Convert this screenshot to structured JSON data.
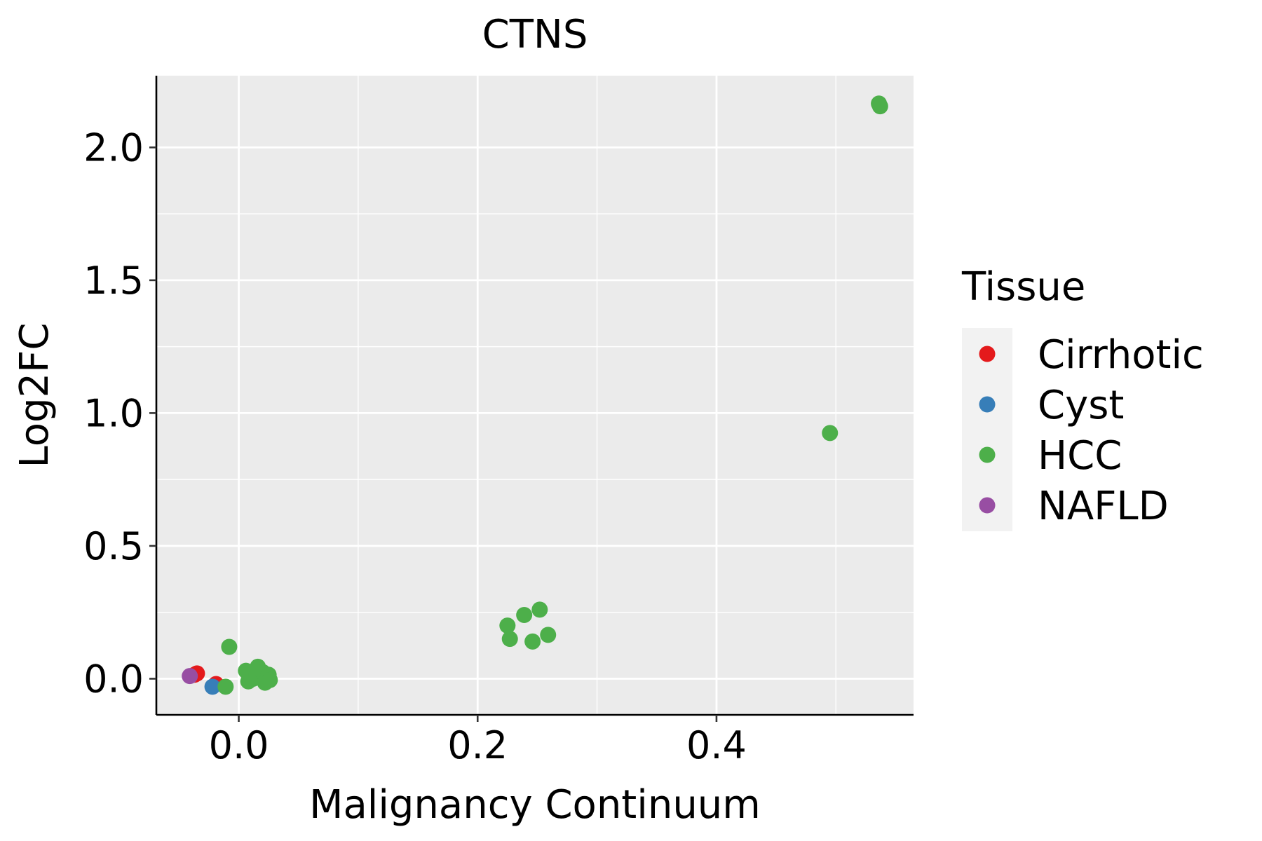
{
  "chart_data": {
    "type": "scatter",
    "title": "CTNS",
    "xlabel": "Malignancy Continuum",
    "ylabel": "Log2FC",
    "xlim": [
      -0.069,
      0.565
    ],
    "ylim": [
      -0.136,
      2.27
    ],
    "x_ticks": [
      0.0,
      0.2,
      0.4
    ],
    "x_tick_labels": [
      "0.0",
      "0.2",
      "0.4"
    ],
    "x_minor": [
      -0.1,
      0.1,
      0.3,
      0.5
    ],
    "y_ticks": [
      0.0,
      0.5,
      1.0,
      1.5,
      2.0
    ],
    "y_tick_labels": [
      "0.0",
      "0.5",
      "1.0",
      "1.5",
      "2.0"
    ],
    "y_minor": [
      0.25,
      0.75,
      1.25,
      1.75
    ],
    "grid": true,
    "legend": {
      "title": "Tissue",
      "position": "right",
      "entries": [
        {
          "label": "Cirrhotic",
          "color": "#E41A1C"
        },
        {
          "label": "Cyst",
          "color": "#377EB8"
        },
        {
          "label": "HCC",
          "color": "#4DAF4A"
        },
        {
          "label": "NAFLD",
          "color": "#984EA3"
        }
      ]
    },
    "series": [
      {
        "name": "Cirrhotic",
        "color": "#E41A1C",
        "points": [
          {
            "x": -0.035,
            "y": 0.02
          },
          {
            "x": -0.037,
            "y": 0.015
          },
          {
            "x": -0.019,
            "y": -0.02
          }
        ]
      },
      {
        "name": "Cyst",
        "color": "#377EB8",
        "points": [
          {
            "x": -0.022,
            "y": -0.03
          }
        ]
      },
      {
        "name": "HCC",
        "color": "#4DAF4A",
        "points": [
          {
            "x": -0.008,
            "y": 0.12
          },
          {
            "x": -0.011,
            "y": -0.03
          },
          {
            "x": 0.006,
            "y": 0.03
          },
          {
            "x": 0.008,
            "y": -0.01
          },
          {
            "x": 0.012,
            "y": 0.0
          },
          {
            "x": 0.015,
            "y": 0.015
          },
          {
            "x": 0.016,
            "y": 0.045
          },
          {
            "x": 0.02,
            "y": 0.025
          },
          {
            "x": 0.022,
            "y": -0.015
          },
          {
            "x": 0.025,
            "y": 0.015
          },
          {
            "x": 0.026,
            "y": -0.005
          },
          {
            "x": 0.225,
            "y": 0.2
          },
          {
            "x": 0.227,
            "y": 0.15
          },
          {
            "x": 0.239,
            "y": 0.24
          },
          {
            "x": 0.246,
            "y": 0.14
          },
          {
            "x": 0.252,
            "y": 0.26
          },
          {
            "x": 0.259,
            "y": 0.165
          },
          {
            "x": 0.495,
            "y": 0.925
          },
          {
            "x": 0.536,
            "y": 2.165
          },
          {
            "x": 0.537,
            "y": 2.155
          }
        ]
      },
      {
        "name": "NAFLD",
        "color": "#984EA3",
        "points": [
          {
            "x": -0.041,
            "y": 0.01
          }
        ]
      }
    ]
  }
}
